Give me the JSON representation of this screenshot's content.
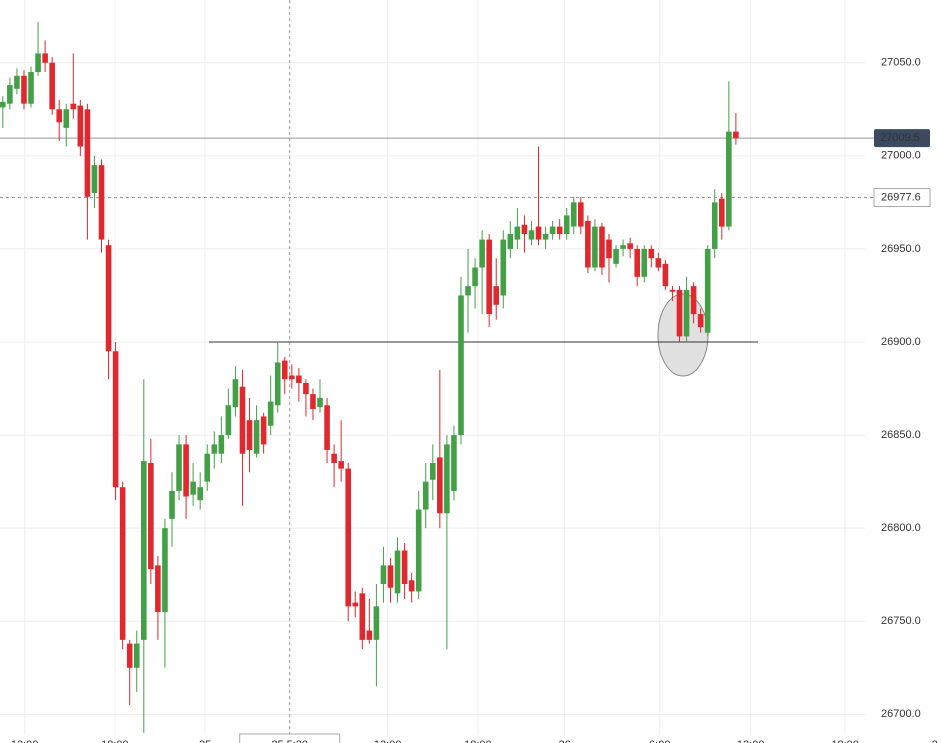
{
  "chart_data": {
    "type": "candlestick",
    "up_color": "#43a047",
    "down_color": "#e0282e",
    "ohlc": [
      [
        27026,
        27032,
        27015,
        27029
      ],
      [
        27028,
        27042,
        27025,
        27038
      ],
      [
        27036,
        27047,
        27033,
        27043
      ],
      [
        27043,
        27046,
        27025,
        27028
      ],
      [
        27028,
        27048,
        27026,
        27045
      ],
      [
        27045,
        27072,
        27043,
        27055
      ],
      [
        27055,
        27062,
        27045,
        27050
      ],
      [
        27050,
        27053,
        27022,
        27025
      ],
      [
        27025,
        27030,
        27008,
        27018
      ],
      [
        27015,
        27028,
        27005,
        27025
      ],
      [
        27028,
        27055,
        27020,
        27025
      ],
      [
        27027,
        27030,
        27000,
        27005
      ],
      [
        27025,
        27028,
        26955,
        26978
      ],
      [
        26980,
        27000,
        26972,
        26995
      ],
      [
        26995,
        26998,
        26948,
        26955
      ],
      [
        26952,
        26955,
        26880,
        26895
      ],
      [
        26895,
        26900,
        26815,
        26822
      ],
      [
        26822,
        26825,
        26735,
        26740
      ],
      [
        26738,
        26740,
        26705,
        26725
      ],
      [
        26725,
        26745,
        26712,
        26738
      ],
      [
        26740,
        26880,
        26690,
        26836
      ],
      [
        26835,
        26848,
        26770,
        26778
      ],
      [
        26780,
        26785,
        26740,
        26755
      ],
      [
        26755,
        26805,
        26725,
        26800
      ],
      [
        26805,
        26830,
        26790,
        26820
      ],
      [
        26820,
        26850,
        26815,
        26845
      ],
      [
        26845,
        26850,
        26805,
        26817
      ],
      [
        26818,
        26835,
        26812,
        26825
      ],
      [
        26815,
        26830,
        26810,
        26822
      ],
      [
        26825,
        26845,
        26820,
        26840
      ],
      [
        26840,
        26852,
        26832,
        26845
      ],
      [
        26840,
        26860,
        26835,
        26850
      ],
      [
        26850,
        26875,
        26848,
        26866
      ],
      [
        26865,
        26887,
        26860,
        26880
      ],
      [
        26876,
        26885,
        26812,
        26840
      ],
      [
        26858,
        26870,
        26830,
        26842
      ],
      [
        26840,
        26866,
        26838,
        26858
      ],
      [
        26860,
        26862,
        26840,
        26845
      ],
      [
        26855,
        26882,
        26850,
        26868
      ],
      [
        26866,
        26900,
        26862,
        26889
      ],
      [
        26890,
        26892,
        26872,
        26880
      ],
      [
        26882,
        26888,
        26875,
        26880
      ],
      [
        26882,
        26886,
        26868,
        26878
      ],
      [
        26878,
        26880,
        26860,
        26872
      ],
      [
        26872,
        26875,
        26858,
        26864
      ],
      [
        26865,
        26880,
        26862,
        26870
      ],
      [
        26866,
        26870,
        26835,
        26842
      ],
      [
        26840,
        26845,
        26822,
        26835
      ],
      [
        26836,
        26858,
        26825,
        26832
      ],
      [
        26832,
        26835,
        26750,
        26758
      ],
      [
        26760,
        26766,
        26752,
        26758
      ],
      [
        26765,
        26768,
        26735,
        26740
      ],
      [
        26745,
        26762,
        26738,
        26740
      ],
      [
        26740,
        26770,
        26715,
        26758
      ],
      [
        26770,
        26790,
        26760,
        26780
      ],
      [
        26780,
        26784,
        26760,
        26768
      ],
      [
        26765,
        26795,
        26760,
        26788
      ],
      [
        26788,
        26792,
        26762,
        26770
      ],
      [
        26772,
        26776,
        26760,
        26766
      ],
      [
        26766,
        26820,
        26762,
        26810
      ],
      [
        26810,
        26835,
        26800,
        26825
      ],
      [
        26826,
        26845,
        26815,
        26835
      ],
      [
        26838,
        26885,
        26800,
        26808
      ],
      [
        26808,
        26850,
        26735,
        26845
      ],
      [
        26820,
        26855,
        26815,
        26850
      ],
      [
        26850,
        26935,
        26845,
        26925
      ],
      [
        26925,
        26950,
        26905,
        26930
      ],
      [
        26930,
        26945,
        26918,
        26940
      ],
      [
        26940,
        26960,
        26915,
        26955
      ],
      [
        26955,
        26958,
        26908,
        26915
      ],
      [
        26930,
        26945,
        26912,
        26920
      ],
      [
        26925,
        26960,
        26918,
        26955
      ],
      [
        26950,
        26965,
        26945,
        26958
      ],
      [
        26955,
        26972,
        26950,
        26962
      ],
      [
        26963,
        26968,
        26948,
        26958
      ],
      [
        26955,
        26965,
        26952,
        26960
      ],
      [
        26962,
        27005,
        26952,
        26955
      ],
      [
        26955,
        26962,
        26950,
        26958
      ],
      [
        26958,
        26965,
        26955,
        26962
      ],
      [
        26962,
        26966,
        26955,
        26958
      ],
      [
        26958,
        26972,
        26955,
        26968
      ],
      [
        26962,
        26978,
        26958,
        26975
      ],
      [
        26975,
        26978,
        26958,
        26962
      ],
      [
        26965,
        26968,
        26937,
        26940
      ],
      [
        26940,
        26966,
        26938,
        26962
      ],
      [
        26962,
        26964,
        26936,
        26940
      ],
      [
        26955,
        26958,
        26932,
        26945
      ],
      [
        26942,
        26952,
        26940,
        26950
      ],
      [
        26950,
        26955,
        26946,
        26952
      ],
      [
        26953,
        26956,
        26945,
        26950
      ],
      [
        26950,
        26952,
        26930,
        26935
      ],
      [
        26935,
        26952,
        26932,
        26950
      ],
      [
        26950,
        26952,
        26940,
        26945
      ],
      [
        26945,
        26948,
        26938,
        26940
      ],
      [
        26942,
        26944,
        26928,
        26930
      ],
      [
        26928,
        26930,
        26922,
        26927
      ],
      [
        26928,
        26930,
        26900,
        26903
      ],
      [
        26903,
        26935,
        26900,
        26928
      ],
      [
        26930,
        26932,
        26910,
        26915
      ],
      [
        26915,
        26918,
        26905,
        26908
      ],
      [
        26905,
        26952,
        26903,
        26950
      ],
      [
        26950,
        26982,
        26945,
        26975
      ],
      [
        26977,
        26980,
        26955,
        26962
      ],
      [
        26962,
        27040,
        26960,
        27013
      ],
      [
        27013,
        27023,
        27006,
        27009.5
      ]
    ],
    "xlim": [
      -0.4,
      133.1
    ],
    "xticks": [
      {
        "value": 3.1,
        "label": "12:00"
      },
      {
        "value": 15.9,
        "label": "18:00"
      },
      {
        "value": 28.7,
        "label": "25"
      },
      {
        "value": 54.6,
        "label": "12:00"
      },
      {
        "value": 67.4,
        "label": "18:00"
      },
      {
        "value": 79.7,
        "label": "26"
      },
      {
        "value": 93.2,
        "label": "6:00"
      },
      {
        "value": 106.1,
        "label": "12:00"
      },
      {
        "value": 119.5,
        "label": "18:00"
      },
      {
        "value": 132.2,
        "label": "2"
      }
    ],
    "crosshair_x": {
      "value": 40.7,
      "label": "25 5:30"
    },
    "ylim": [
      26684.6,
      27083.7
    ],
    "yticks": [
      {
        "value": 26700,
        "label": "26700.0"
      },
      {
        "value": 26750,
        "label": "26750.0"
      },
      {
        "value": 26800,
        "label": "26800.0"
      },
      {
        "value": 26850,
        "label": "26850.0"
      },
      {
        "value": 26900,
        "label": "26900.0"
      },
      {
        "value": 26950,
        "label": "26950.0"
      },
      {
        "value": 27000,
        "label": "27000.0"
      },
      {
        "value": 27050,
        "label": "27050.0"
      }
    ],
    "last_price": 27009.5,
    "crosshair_price": 26977.6,
    "drawn_level": 26900,
    "grid": true
  }
}
